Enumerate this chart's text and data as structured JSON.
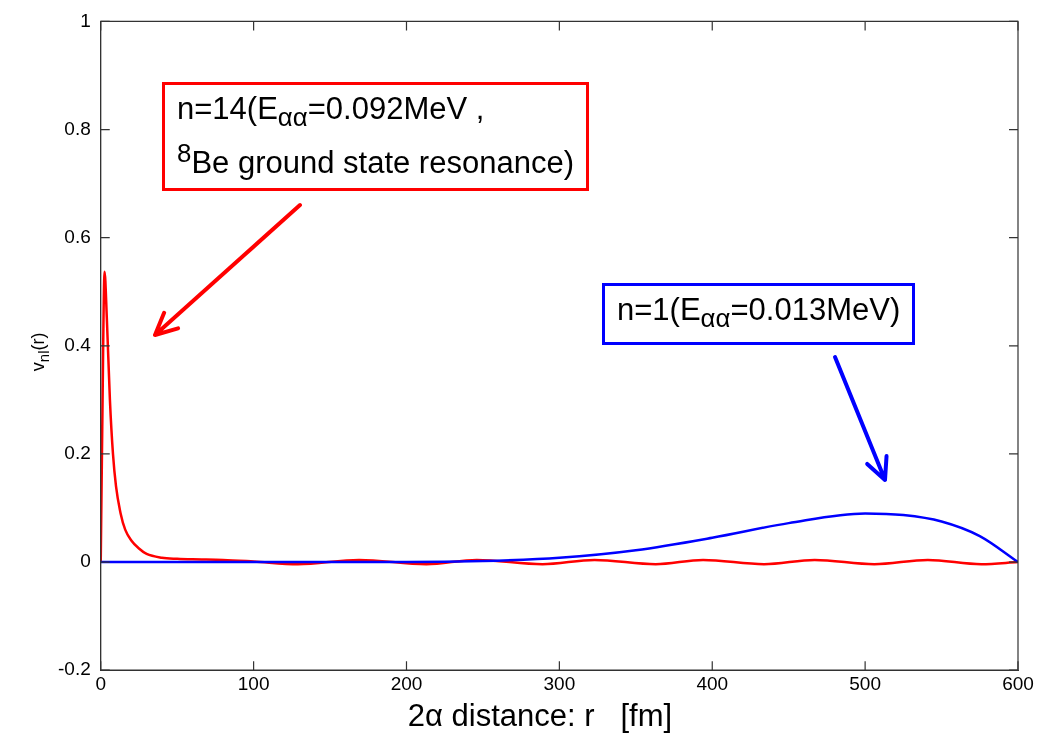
{
  "chart_data": {
    "type": "line",
    "xlabel": "2α distance: r   [fm]",
    "ylabel": "v$_{nl}$(r)",
    "xlim": [
      0,
      600
    ],
    "xticks": [
      0,
      100,
      200,
      300,
      400,
      500,
      600
    ],
    "ylim": [
      -0.2,
      1
    ],
    "yticks": [
      -0.2,
      0,
      0.2,
      0.4,
      0.6,
      0.8,
      1
    ],
    "grid": false,
    "legend": false,
    "marker": "none",
    "line_style": "solid",
    "series": [
      {
        "color": "#0000ff",
        "x": [
          0,
          100,
          200,
          250,
          300,
          350,
          400,
          450,
          500,
          525,
          550,
          575,
          600
        ],
        "values": [
          0,
          0,
          0,
          0.002,
          0.008,
          0.022,
          0.045,
          0.072,
          0.09,
          0.087,
          0.075,
          0.048,
          0
        ]
      },
      {
        "color": "#ff0000",
        "x": [
          0,
          1,
          2.5,
          4,
          6,
          8,
          10,
          13,
          16,
          20,
          25,
          30,
          40,
          50,
          60,
          80,
          100,
          129,
          169,
          213,
          246,
          289,
          323,
          363,
          394,
          434,
          467,
          506,
          541,
          576,
          600
        ],
        "values": [
          0,
          0.25,
          0.537,
          0.45,
          0.3,
          0.2,
          0.14,
          0.09,
          0.06,
          0.04,
          0.025,
          0.015,
          0.008,
          0.006,
          0.005,
          0.004,
          0.001,
          -0.004,
          0.004,
          -0.004,
          0.004,
          -0.004,
          0.004,
          -0.004,
          0.004,
          -0.004,
          0.004,
          -0.004,
          0.004,
          -0.004,
          0
        ]
      }
    ],
    "annotations": [
      "n=14(E$_{αα}$=0.092MeV ,\n$^{8}$Be ground state resonance)",
      "n=1(E$_{αα}$=0.013MeV)"
    ]
  }
}
